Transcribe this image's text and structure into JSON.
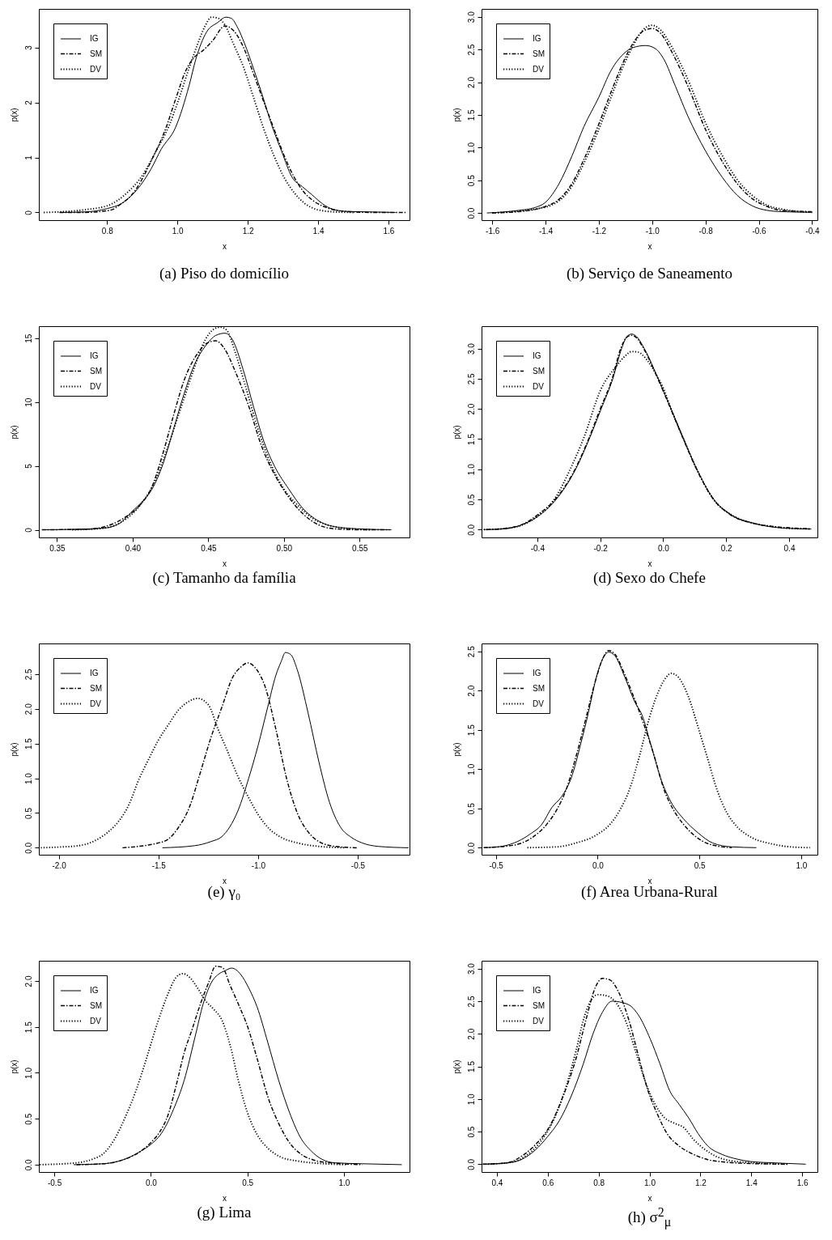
{
  "chart_data": [
    {
      "type": "line",
      "title": "(a) Piso do domicílio",
      "xlabel": "x",
      "ylabel": "p(x)",
      "xlim": [
        0.606,
        1.66
      ],
      "ylim": [
        -0.14,
        3.7
      ],
      "xticks": [
        0.8,
        {
          "value": 1,
          "label": "1.0"
        },
        1.2,
        1.4,
        1.6
      ],
      "yticks": [
        0,
        1,
        2,
        3
      ],
      "legend": "top left",
      "series": [
        {
          "name": "IG",
          "color": "#000000",
          "line_style": "solid",
          "x": [
            0.665,
            0.737,
            0.8,
            0.843,
            0.886,
            0.925,
            0.954,
            0.995,
            1.033,
            1.053,
            1.083,
            1.114,
            1.138,
            1.153,
            1.172,
            1.191,
            1.215,
            1.244,
            1.268,
            1.297,
            1.326,
            1.355,
            1.383,
            1.412,
            1.441,
            1.48,
            1.55,
            1.62
          ],
          "values": [
            0,
            0.01,
            0.07,
            0.17,
            0.42,
            0.79,
            1.15,
            1.55,
            2.3,
            2.8,
            3.28,
            3.45,
            3.55,
            3.53,
            3.35,
            3.07,
            2.64,
            2.08,
            1.59,
            1.1,
            0.64,
            0.47,
            0.32,
            0.16,
            0.06,
            0.02,
            0.01,
            0
          ]
        },
        {
          "name": "SM",
          "color": "#000000",
          "line_style": "dashdot",
          "x": [
            0.665,
            0.737,
            0.785,
            0.814,
            0.832,
            0.88,
            0.928,
            0.967,
            0.996,
            1.024,
            1.048,
            1.072,
            1.101,
            1.135,
            1.159,
            1.188,
            1.217,
            1.245,
            1.274,
            1.303,
            1.332,
            1.361,
            1.389,
            1.428,
            1.476,
            1.553,
            1.649
          ],
          "values": [
            0,
            0,
            0.02,
            0.05,
            0.12,
            0.4,
            0.97,
            1.53,
            2.08,
            2.58,
            2.82,
            2.94,
            3.13,
            3.39,
            3.31,
            3.0,
            2.51,
            2.02,
            1.53,
            1.04,
            0.64,
            0.36,
            0.2,
            0.08,
            0.02,
            0,
            0
          ]
        },
        {
          "name": "DV",
          "color": "#000000",
          "line_style": "dotted",
          "x": [
            0.62,
            0.737,
            0.804,
            0.852,
            0.9,
            0.938,
            0.977,
            1.005,
            1.034,
            1.058,
            1.078,
            1.097,
            1.116,
            1.135,
            1.159,
            1.188,
            1.217,
            1.245,
            1.274,
            1.303,
            1.332,
            1.361,
            1.399,
            1.447,
            1.504
          ],
          "values": [
            0,
            0.05,
            0.13,
            0.33,
            0.67,
            1.1,
            1.59,
            2.08,
            2.64,
            3.07,
            3.38,
            3.55,
            3.53,
            3.41,
            3.07,
            2.64,
            2.08,
            1.53,
            1.04,
            0.64,
            0.36,
            0.17,
            0.05,
            0.01,
            0
          ]
        }
      ]
    },
    {
      "type": "line",
      "title": "(b) Serviço de Saneamento",
      "xlabel": "x",
      "ylabel": "p(x)",
      "xlim": [
        -1.64,
        -0.38
      ],
      "ylim": [
        -0.11,
        3.12
      ],
      "xticks": [
        -1.6,
        -1.4,
        -1.2,
        {
          "value": -1,
          "label": "-1.0"
        },
        -0.8,
        -0.6,
        -0.4
      ],
      "yticks": [
        {
          "value": 0,
          "label": "0.0"
        },
        0.5,
        {
          "value": 1,
          "label": "1.0"
        },
        1.5,
        {
          "value": 2,
          "label": "2.0"
        },
        2.5,
        {
          "value": 3,
          "label": "3.0"
        }
      ],
      "legend": "top left",
      "series": [
        {
          "name": "IG",
          "color": "#000000",
          "line_style": "solid",
          "x": [
            -1.62,
            -1.5,
            -1.442,
            -1.401,
            -1.349,
            -1.301,
            -1.256,
            -1.2,
            -1.154,
            -1.108,
            -1.071,
            -1.024,
            -0.987,
            -0.956,
            -0.913,
            -0.866,
            -0.8,
            -0.736,
            -0.681,
            -0.625,
            -0.569,
            -0.514,
            -0.402
          ],
          "values": [
            0,
            0.04,
            0.08,
            0.16,
            0.45,
            0.87,
            1.32,
            1.77,
            2.18,
            2.43,
            2.53,
            2.56,
            2.51,
            2.35,
            1.94,
            1.48,
            0.95,
            0.54,
            0.27,
            0.11,
            0.04,
            0.02,
            0.01
          ]
        },
        {
          "name": "SM",
          "color": "#000000",
          "line_style": "dashdot",
          "x": [
            -1.6,
            -1.5,
            -1.4,
            -1.349,
            -1.301,
            -1.256,
            -1.2,
            -1.154,
            -1.108,
            -1.071,
            -1.034,
            -1.0,
            -0.969,
            -0.922,
            -0.866,
            -0.8,
            -0.736,
            -0.681,
            -0.625,
            -0.569,
            -0.514,
            -0.402
          ],
          "values": [
            0,
            0.02,
            0.1,
            0.21,
            0.45,
            0.82,
            1.36,
            1.85,
            2.31,
            2.6,
            2.78,
            2.82,
            2.75,
            2.43,
            1.94,
            1.28,
            0.78,
            0.45,
            0.22,
            0.1,
            0.04,
            0.02
          ]
        },
        {
          "name": "DV",
          "color": "#000000",
          "line_style": "dotted",
          "x": [
            -1.6,
            -1.4,
            -1.301,
            -1.256,
            -1.2,
            -1.154,
            -1.108,
            -1.071,
            -1.034,
            -1.0,
            -0.969,
            -0.922,
            -0.866,
            -0.8,
            -0.736,
            -0.681,
            -0.625,
            -0.569,
            -0.514,
            -0.44,
            -0.393
          ],
          "values": [
            0,
            0.09,
            0.41,
            0.76,
            1.28,
            1.77,
            2.25,
            2.56,
            2.8,
            2.87,
            2.8,
            2.51,
            2.04,
            1.38,
            0.87,
            0.51,
            0.27,
            0.12,
            0.06,
            0.02,
            0.01
          ]
        }
      ]
    },
    {
      "type": "line",
      "title": "(c) Tamanho da família",
      "xlabel": "x",
      "ylabel": "p(x)",
      "xlim": [
        0.338,
        0.583
      ],
      "ylim": [
        -0.6,
        15.93
      ],
      "xticks": [
        0.35,
        {
          "value": 0.4,
          "label": "0.40"
        },
        0.45,
        {
          "value": 0.5,
          "label": "0.50"
        },
        0.55
      ],
      "yticks": [
        0,
        5,
        10,
        15
      ],
      "legend": "top left",
      "series": [
        {
          "name": "IG",
          "color": "#000000",
          "line_style": "solid",
          "x": [
            0.342,
            0.363,
            0.381,
            0.391,
            0.4,
            0.406,
            0.413,
            0.42,
            0.427,
            0.434,
            0.441,
            0.448,
            0.455,
            0.461,
            0.466,
            0.473,
            0.48,
            0.487,
            0.494,
            0.503,
            0.512,
            0.523,
            0.533,
            0.548,
            0.571
          ],
          "values": [
            0,
            0.04,
            0.13,
            0.47,
            1.48,
            2.16,
            3.22,
            5.13,
            7.88,
            10.64,
            12.97,
            14.36,
            15.21,
            15.38,
            14.87,
            12.54,
            9.58,
            6.82,
            4.92,
            3.22,
            1.74,
            0.68,
            0.25,
            0.08,
            0
          ]
        },
        {
          "name": "SM",
          "color": "#000000",
          "line_style": "dashdot",
          "x": [
            0.34,
            0.37,
            0.384,
            0.395,
            0.404,
            0.413,
            0.42,
            0.427,
            0.434,
            0.443,
            0.45,
            0.455,
            0.461,
            0.468,
            0.477,
            0.485,
            0.494,
            0.503,
            0.512,
            0.523,
            0.533,
            0.551,
            0.57
          ],
          "values": [
            0,
            0.04,
            0.34,
            0.97,
            1.82,
            3.43,
            5.97,
            8.94,
            11.69,
            13.81,
            14.66,
            14.79,
            14.11,
            12.33,
            9.58,
            6.61,
            4.28,
            2.58,
            1.31,
            0.38,
            0.08,
            0,
            0
          ]
        },
        {
          "name": "DV",
          "color": "#000000",
          "line_style": "dotted",
          "x": [
            0.36,
            0.377,
            0.388,
            0.397,
            0.406,
            0.415,
            0.423,
            0.432,
            0.441,
            0.448,
            0.454,
            0.458,
            0.462,
            0.468,
            0.475,
            0.484,
            0.493,
            0.501,
            0.51,
            0.519,
            0.53,
            0.544,
            0.558
          ],
          "values": [
            0,
            0.08,
            0.34,
            0.97,
            2.08,
            3.86,
            6.4,
            9.58,
            12.75,
            14.87,
            15.72,
            15.85,
            15.64,
            13.81,
            11.06,
            7.46,
            4.7,
            3.01,
            1.82,
            0.89,
            0.34,
            0.08,
            0
          ]
        }
      ]
    },
    {
      "type": "line",
      "title": "(d) Sexo do Chefe",
      "xlabel": "x",
      "ylabel": "p(x)",
      "xlim": [
        -0.577,
        0.49
      ],
      "ylim": [
        -0.13,
        3.37
      ],
      "xticks": [
        -0.4,
        -0.2,
        {
          "value": 0,
          "label": "0.0"
        },
        0.2,
        0.4
      ],
      "yticks": [
        {
          "value": 0,
          "label": "0.0"
        },
        0.5,
        {
          "value": 1,
          "label": "1.0"
        },
        1.5,
        {
          "value": 2,
          "label": "2.0"
        },
        2.5,
        {
          "value": 3,
          "label": "3.0"
        }
      ],
      "legend": "top left",
      "series": [
        {
          "name": "IG",
          "color": "#000000",
          "line_style": "solid",
          "x": [
            -0.57,
            -0.51,
            -0.46,
            -0.4,
            -0.34,
            -0.278,
            -0.235,
            -0.197,
            -0.16,
            -0.132,
            -0.115,
            -0.1,
            -0.085,
            -0.06,
            -0.016,
            0.025,
            0.065,
            0.107,
            0.161,
            0.215,
            0.292,
            0.35,
            0.4,
            0.47
          ],
          "values": [
            0,
            0.01,
            0.06,
            0.21,
            0.5,
            1.0,
            1.5,
            2.0,
            2.5,
            3.0,
            3.2,
            3.24,
            3.2,
            3.0,
            2.5,
            2.0,
            1.5,
            1.0,
            0.5,
            0.25,
            0.1,
            0.04,
            0.02,
            0.01
          ]
        },
        {
          "name": "SM",
          "color": "#000000",
          "line_style": "dashdot",
          "x": [
            -0.56,
            -0.5,
            -0.45,
            -0.4,
            -0.34,
            -0.28,
            -0.237,
            -0.2,
            -0.162,
            -0.135,
            -0.115,
            -0.1,
            -0.085,
            -0.06,
            -0.017,
            0.024,
            0.064,
            0.106,
            0.16,
            0.215,
            0.29,
            0.35,
            0.4,
            0.47
          ],
          "values": [
            0,
            0.02,
            0.08,
            0.24,
            0.52,
            1.0,
            1.5,
            2.0,
            2.5,
            3.0,
            3.19,
            3.22,
            3.18,
            2.98,
            2.5,
            2.0,
            1.5,
            1.0,
            0.5,
            0.24,
            0.1,
            0.05,
            0.03,
            0.01
          ]
        },
        {
          "name": "DV",
          "color": "#000000",
          "line_style": "dotted",
          "x": [
            -0.57,
            -0.5,
            -0.45,
            -0.4,
            -0.34,
            -0.3,
            -0.25,
            -0.2,
            -0.15,
            -0.12,
            -0.1,
            -0.08,
            -0.05,
            -0.02,
            0.0,
            0.025,
            0.065,
            0.107,
            0.16,
            0.215,
            0.29,
            0.35,
            0.4,
            0.47
          ],
          "values": [
            0,
            0.02,
            0.07,
            0.22,
            0.55,
            0.95,
            1.55,
            2.3,
            2.7,
            2.88,
            2.95,
            2.94,
            2.8,
            2.55,
            2.35,
            2.0,
            1.5,
            1.0,
            0.5,
            0.25,
            0.1,
            0.05,
            0.02,
            0.01
          ]
        }
      ]
    },
    {
      "type": "line",
      "title": "(e) γ₀",
      "xlabel": "x",
      "ylabel": "p(x)",
      "xlim": [
        -2.1,
        -0.24
      ],
      "ylim": [
        -0.1,
        2.94
      ],
      "xticks": [
        {
          "value": -2,
          "label": "-2.0"
        },
        -1.5,
        {
          "value": -1,
          "label": "-1.0"
        },
        -0.5
      ],
      "yticks": [
        {
          "value": 0,
          "label": "0.0"
        },
        0.5,
        {
          "value": 1,
          "label": "1.0"
        },
        1.5,
        {
          "value": 2,
          "label": "2.0"
        },
        2.5
      ],
      "legend": "top left",
      "series": [
        {
          "name": "IG",
          "color": "#000000",
          "line_style": "solid",
          "x": [
            -1.48,
            -1.318,
            -1.236,
            -1.182,
            -1.142,
            -1.1,
            -1.047,
            -1.0,
            -0.952,
            -0.911,
            -0.884,
            -0.863,
            -0.836,
            -0.803,
            -0.749,
            -0.695,
            -0.641,
            -0.587,
            -0.532,
            -0.478,
            -0.397,
            -0.245
          ],
          "values": [
            0,
            0.03,
            0.09,
            0.16,
            0.3,
            0.54,
            1.0,
            1.47,
            2.02,
            2.48,
            2.68,
            2.81,
            2.78,
            2.56,
            1.94,
            1.24,
            0.65,
            0.3,
            0.15,
            0.07,
            0.02,
            0
          ]
        },
        {
          "name": "SM",
          "color": "#000000",
          "line_style": "dashdot",
          "x": [
            -1.68,
            -1.6,
            -1.55,
            -1.5,
            -1.453,
            -1.4,
            -1.345,
            -1.29,
            -1.236,
            -1.182,
            -1.128,
            -1.087,
            -1.052,
            -1.006,
            -0.966,
            -0.911,
            -0.857,
            -0.803,
            -0.749,
            -0.695,
            -0.614,
            -0.505
          ],
          "values": [
            0,
            0.02,
            0.04,
            0.07,
            0.12,
            0.29,
            0.58,
            1.08,
            1.59,
            2.02,
            2.45,
            2.6,
            2.66,
            2.56,
            2.33,
            1.71,
            1.0,
            0.5,
            0.23,
            0.09,
            0.02,
            0
          ]
        },
        {
          "name": "DV",
          "color": "#000000",
          "line_style": "dotted",
          "x": [
            -2.09,
            -2.0,
            -1.9,
            -1.8,
            -1.751,
            -1.7,
            -1.648,
            -1.6,
            -1.548,
            -1.5,
            -1.448,
            -1.4,
            -1.345,
            -1.304,
            -1.25,
            -1.2,
            -1.155,
            -1.1,
            -1.047,
            -1.0,
            -0.939,
            -0.884,
            -0.803,
            -0.695,
            -0.56
          ],
          "values": [
            0,
            0.01,
            0.03,
            0.13,
            0.23,
            0.38,
            0.62,
            0.97,
            1.28,
            1.55,
            1.78,
            1.98,
            2.11,
            2.15,
            2.06,
            1.7,
            1.4,
            1.02,
            0.72,
            0.48,
            0.26,
            0.15,
            0.07,
            0.02,
            0
          ]
        }
      ]
    },
    {
      "type": "line",
      "title": "(f) Area Urbana-Rural",
      "xlabel": "x",
      "ylabel": "p(x)",
      "xlim": [
        -0.57,
        1.08
      ],
      "ylim": [
        -0.09,
        2.6
      ],
      "xticks": [
        -0.5,
        {
          "value": 0,
          "label": "0.0"
        },
        0.5,
        {
          "value": 1,
          "label": "1.0"
        }
      ],
      "yticks": [
        {
          "value": 0,
          "label": "0.0"
        },
        0.5,
        {
          "value": 1,
          "label": "1.0"
        },
        1.5,
        {
          "value": 2,
          "label": "2.0"
        },
        2.5
      ],
      "legend": "top left",
      "series": [
        {
          "name": "IG",
          "color": "#000000",
          "line_style": "solid",
          "x": [
            -0.548,
            -0.464,
            -0.392,
            -0.333,
            -0.273,
            -0.225,
            -0.177,
            -0.129,
            -0.081,
            -0.045,
            -0.01,
            0.026,
            0.055,
            0.086,
            0.134,
            0.182,
            0.218,
            0.266,
            0.313,
            0.361,
            0.421,
            0.493,
            0.565,
            0.66,
            0.78
          ],
          "values": [
            0,
            0.02,
            0.08,
            0.17,
            0.3,
            0.51,
            0.65,
            0.89,
            1.34,
            1.72,
            2.13,
            2.41,
            2.49,
            2.44,
            2.17,
            1.86,
            1.69,
            1.27,
            0.86,
            0.58,
            0.37,
            0.19,
            0.06,
            0.01,
            0
          ]
        },
        {
          "name": "SM",
          "color": "#000000",
          "line_style": "dashdot",
          "x": [
            -0.56,
            -0.416,
            -0.321,
            -0.249,
            -0.201,
            -0.153,
            -0.105,
            -0.057,
            -0.01,
            0.026,
            0.055,
            0.086,
            0.134,
            0.182,
            0.23,
            0.278,
            0.325,
            0.373,
            0.421,
            0.469,
            0.517,
            0.589,
            0.66
          ],
          "values": [
            0,
            0.03,
            0.13,
            0.3,
            0.48,
            0.75,
            1.17,
            1.65,
            2.13,
            2.41,
            2.51,
            2.46,
            2.2,
            1.89,
            1.55,
            1.17,
            0.75,
            0.48,
            0.3,
            0.17,
            0.08,
            0.02,
            0
          ]
        },
        {
          "name": "DV",
          "color": "#000000",
          "line_style": "dotted",
          "x": [
            -0.345,
            -0.201,
            -0.105,
            0.0,
            0.062,
            0.11,
            0.158,
            0.206,
            0.254,
            0.301,
            0.337,
            0.361,
            0.397,
            0.445,
            0.5,
            0.541,
            0.589,
            0.636,
            0.684,
            0.756,
            0.852,
            0.947,
            1.043
          ],
          "values": [
            0,
            0.01,
            0.06,
            0.17,
            0.3,
            0.48,
            0.75,
            1.17,
            1.65,
            2.0,
            2.17,
            2.22,
            2.17,
            1.93,
            1.48,
            1.13,
            0.72,
            0.44,
            0.27,
            0.13,
            0.05,
            0.01,
            0
          ]
        }
      ]
    },
    {
      "type": "line",
      "title": "(g) Lima",
      "xlabel": "x",
      "ylabel": "p(x)",
      "xlim": [
        -0.58,
        1.34
      ],
      "ylim": [
        -0.08,
        2.22
      ],
      "xticks": [
        -0.5,
        {
          "value": 0,
          "label": "0.0"
        },
        0.5,
        {
          "value": 1,
          "label": "1.0"
        }
      ],
      "yticks": [
        {
          "value": 0,
          "label": "0.0"
        },
        0.5,
        {
          "value": 1,
          "label": "1.0"
        },
        1.5,
        {
          "value": 2,
          "label": "2.0"
        }
      ],
      "legend": "top left",
      "series": [
        {
          "name": "IG",
          "color": "#000000",
          "line_style": "solid",
          "x": [
            -0.4,
            -0.246,
            -0.134,
            -0.05,
            0.0,
            0.061,
            0.117,
            0.173,
            0.229,
            0.271,
            0.313,
            0.355,
            0.383,
            0.419,
            0.466,
            0.508,
            0.55,
            0.606,
            0.662,
            0.718,
            0.774,
            0.83,
            0.885,
            0.955,
            1.095,
            1.3
          ],
          "values": [
            0,
            0.01,
            0.06,
            0.15,
            0.22,
            0.36,
            0.6,
            0.92,
            1.39,
            1.75,
            1.98,
            2.08,
            2.11,
            2.14,
            2.07,
            1.92,
            1.72,
            1.33,
            0.92,
            0.57,
            0.3,
            0.15,
            0.06,
            0.02,
            0.01,
            0
          ]
        },
        {
          "name": "SM",
          "color": "#000000",
          "line_style": "dashdot",
          "x": [
            -0.385,
            -0.246,
            -0.134,
            -0.05,
            0.0,
            0.047,
            0.089,
            0.131,
            0.173,
            0.215,
            0.257,
            0.299,
            0.335,
            0.369,
            0.411,
            0.453,
            0.5,
            0.55,
            0.606,
            0.662,
            0.718,
            0.774,
            0.844,
            0.927,
            1.095
          ],
          "values": [
            0,
            0.01,
            0.06,
            0.15,
            0.24,
            0.36,
            0.54,
            0.86,
            1.22,
            1.48,
            1.75,
            1.98,
            2.16,
            2.15,
            1.95,
            1.75,
            1.51,
            1.16,
            0.74,
            0.45,
            0.24,
            0.12,
            0.05,
            0.02,
            0
          ]
        },
        {
          "name": "DV",
          "color": "#000000",
          "line_style": "dotted",
          "x": [
            -0.575,
            -0.385,
            -0.302,
            -0.246,
            -0.19,
            -0.134,
            -0.078,
            -0.022,
            0.034,
            0.089,
            0.131,
            0.165,
            0.201,
            0.243,
            0.285,
            0.327,
            0.369,
            0.411,
            0.453,
            0.5,
            0.55,
            0.606,
            0.676,
            0.76,
            0.899,
            1.011
          ],
          "values": [
            0,
            0.02,
            0.06,
            0.12,
            0.27,
            0.51,
            0.8,
            1.16,
            1.54,
            1.86,
            2.04,
            2.08,
            2.04,
            1.92,
            1.78,
            1.69,
            1.57,
            1.3,
            0.92,
            0.57,
            0.33,
            0.18,
            0.08,
            0.04,
            0.01,
            0
          ]
        }
      ]
    },
    {
      "type": "line",
      "title": "(h) σ$^{2}$$_{μ}$",
      "xlabel": "x",
      "ylabel": "p(x)",
      "xlim": [
        0.34,
        1.66
      ],
      "ylim": [
        -0.12,
        3.12
      ],
      "xticks": [
        0.4,
        0.6,
        0.8,
        {
          "value": 1,
          "label": "1.0"
        },
        1.2,
        1.4,
        1.6
      ],
      "yticks": [
        {
          "value": 0,
          "label": "0.0"
        },
        0.5,
        {
          "value": 1,
          "label": "1.0"
        },
        1.5,
        {
          "value": 2,
          "label": "2.0"
        },
        2.5,
        {
          "value": 3,
          "label": "3.0"
        }
      ],
      "legend": "top left",
      "series": [
        {
          "name": "IG",
          "color": "#000000",
          "line_style": "solid",
          "x": [
            0.345,
            0.44,
            0.496,
            0.552,
            0.599,
            0.646,
            0.693,
            0.74,
            0.778,
            0.815,
            0.853,
            0.891,
            0.928,
            0.956,
            1.003,
            1.041,
            1.079,
            1.116,
            1.154,
            1.191,
            1.229,
            1.285,
            1.342,
            1.398,
            1.492,
            1.614
          ],
          "values": [
            0,
            0.02,
            0.07,
            0.22,
            0.42,
            0.67,
            1.05,
            1.54,
            2.0,
            2.33,
            2.5,
            2.48,
            2.42,
            2.29,
            1.92,
            1.54,
            1.13,
            0.92,
            0.71,
            0.47,
            0.28,
            0.15,
            0.08,
            0.04,
            0.02,
            0
          ]
        },
        {
          "name": "SM",
          "color": "#000000",
          "line_style": "dashdot",
          "x": [
            0.345,
            0.44,
            0.496,
            0.552,
            0.609,
            0.665,
            0.712,
            0.75,
            0.787,
            0.815,
            0.843,
            0.881,
            0.919,
            0.956,
            0.994,
            1.032,
            1.069,
            1.116,
            1.173,
            1.229,
            1.304,
            1.398,
            1.548
          ],
          "values": [
            0,
            0.02,
            0.12,
            0.3,
            0.59,
            1.09,
            1.63,
            2.21,
            2.71,
            2.85,
            2.83,
            2.62,
            2.21,
            1.67,
            1.13,
            0.76,
            0.47,
            0.28,
            0.15,
            0.07,
            0.03,
            0.01,
            0
          ]
        },
        {
          "name": "DV",
          "color": "#000000",
          "line_style": "dotted",
          "x": [
            0.364,
            0.458,
            0.515,
            0.571,
            0.627,
            0.674,
            0.712,
            0.74,
            0.768,
            0.797,
            0.834,
            0.872,
            0.909,
            0.947,
            0.985,
            1.022,
            1.06,
            1.097,
            1.135,
            1.173,
            1.22,
            1.267,
            1.323,
            1.417,
            1.548
          ],
          "values": [
            0,
            0.03,
            0.13,
            0.34,
            0.71,
            1.21,
            1.75,
            2.21,
            2.5,
            2.6,
            2.58,
            2.46,
            2.17,
            1.71,
            1.25,
            0.92,
            0.71,
            0.63,
            0.56,
            0.38,
            0.22,
            0.11,
            0.05,
            0.02,
            0
          ]
        }
      ]
    }
  ]
}
